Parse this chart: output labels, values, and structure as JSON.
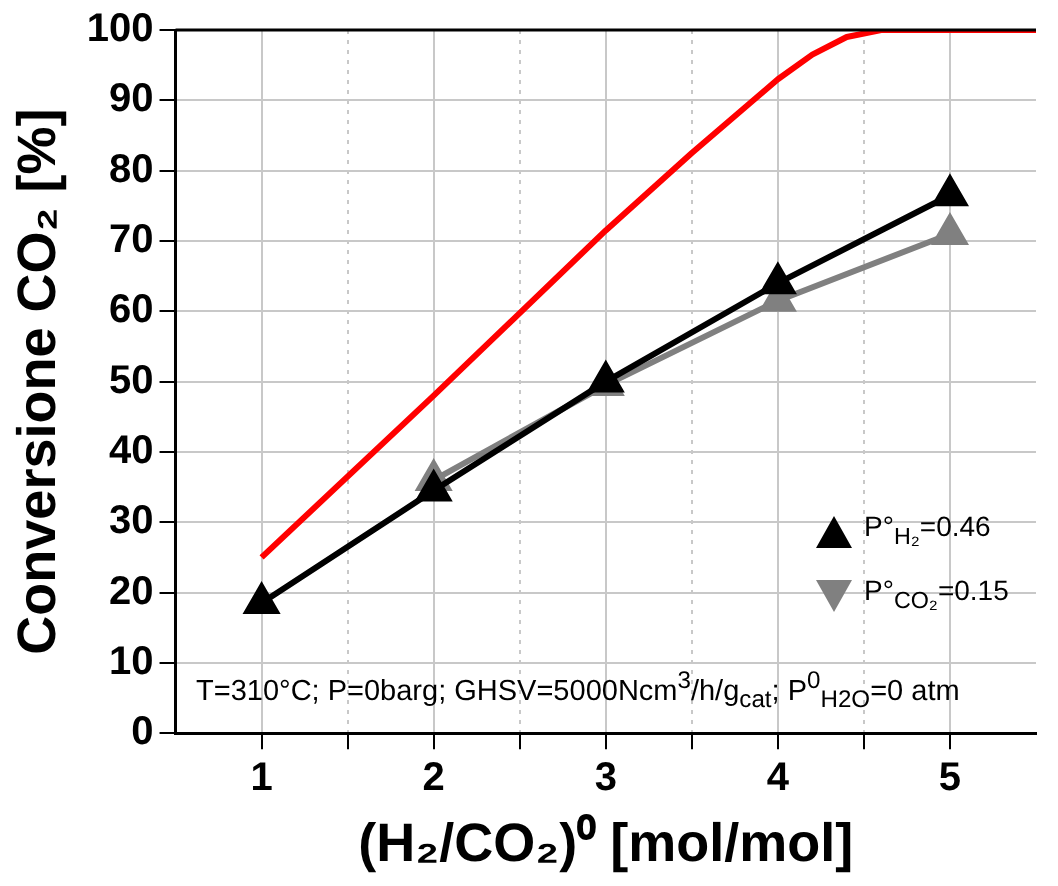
{
  "chart_data": {
    "type": "line",
    "xlabel": "(H₂/CO₂)⁰ [mol/mol]",
    "ylabel": "Conversione CO₂ [%]",
    "xlim": [
      0.5,
      5.5
    ],
    "xticks": [
      1,
      {
        "value": 1.5,
        "label": null
      },
      2,
      {
        "value": 2.5,
        "label": null
      },
      3,
      {
        "value": 3.5,
        "label": null
      },
      4,
      {
        "value": 4.5,
        "label": null
      },
      5
    ],
    "ylim": [
      0,
      100
    ],
    "yticks": [
      0,
      10,
      20,
      30,
      40,
      50,
      60,
      70,
      80,
      90,
      100
    ],
    "grid": true,
    "legend": "right",
    "annotations": [
      "T=310°C; P=0barg; GHSV=5000Ncm$^{3}$/h/g$_{cat}$; P$^{0}$$_{H2O}$=0 atm"
    ],
    "series": [
      {
        "name": "P°$_{H₂}$=0.46",
        "color": "#000000",
        "marker": "triangle",
        "x": [
          1,
          2,
          3,
          4,
          5
        ],
        "values": [
          18.5,
          34.5,
          50,
          64,
          76.5
        ]
      },
      {
        "name": "P°$_{CO₂}$=0.15",
        "color": "#808080",
        "marker": "triangle",
        "x": [
          2,
          3,
          4,
          5
        ],
        "values": [
          36,
          49.5,
          61.5,
          71
        ]
      },
      {
        "color": "#ff0000",
        "marker": "none",
        "x": [
          1,
          2,
          3,
          3.5,
          4,
          4.2,
          4.4,
          4.6,
          5,
          5.5
        ],
        "values": [
          25,
          48,
          71.5,
          82.5,
          93,
          96.5,
          99,
          100,
          100,
          100
        ]
      }
    ]
  }
}
